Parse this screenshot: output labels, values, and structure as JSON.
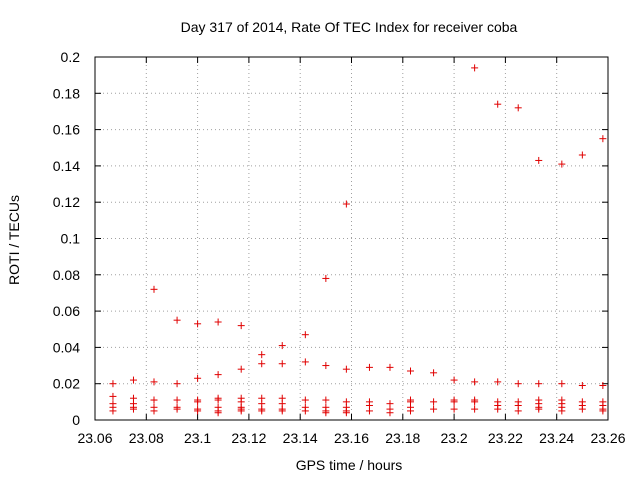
{
  "chart_data": {
    "type": "scatter",
    "title": "Day 317 of 2014, Rate Of TEC Index for receiver coba",
    "xlabel": "GPS time / hours",
    "ylabel": "ROTI / TECUs",
    "xlim": [
      23.06,
      23.26
    ],
    "ylim": [
      0,
      0.2
    ],
    "xticks": [
      23.06,
      23.08,
      23.1,
      23.12,
      23.14,
      23.16,
      23.18,
      23.2,
      23.22,
      23.24,
      23.26
    ],
    "xtick_labels": [
      "23.06",
      "23.08",
      "23.1",
      "23.12",
      "23.14",
      "23.16",
      "23.18",
      "23.2",
      "23.22",
      "23.24",
      "23.26"
    ],
    "yticks": [
      0,
      0.02,
      0.04,
      0.06,
      0.08,
      0.1,
      0.12,
      0.14,
      0.16,
      0.18,
      0.2
    ],
    "ytick_labels": [
      "0",
      "0.02",
      "0.04",
      "0.06",
      "0.08",
      "0.1",
      "0.12",
      "0.14",
      "0.16",
      "0.18",
      "0.2"
    ],
    "grid": true,
    "marker": "+",
    "color": "#e00000",
    "series": [
      {
        "name": "ROTI",
        "points": [
          [
            23.067,
            0.02
          ],
          [
            23.067,
            0.013
          ],
          [
            23.067,
            0.009
          ],
          [
            23.067,
            0.007
          ],
          [
            23.067,
            0.005
          ],
          [
            23.075,
            0.022
          ],
          [
            23.075,
            0.012
          ],
          [
            23.075,
            0.009
          ],
          [
            23.075,
            0.007
          ],
          [
            23.075,
            0.006
          ],
          [
            23.083,
            0.072
          ],
          [
            23.083,
            0.021
          ],
          [
            23.083,
            0.011
          ],
          [
            23.083,
            0.011
          ],
          [
            23.083,
            0.007
          ],
          [
            23.083,
            0.005
          ],
          [
            23.092,
            0.055
          ],
          [
            23.092,
            0.02
          ],
          [
            23.092,
            0.011
          ],
          [
            23.092,
            0.007
          ],
          [
            23.092,
            0.006
          ],
          [
            23.1,
            0.053
          ],
          [
            23.1,
            0.023
          ],
          [
            23.1,
            0.011
          ],
          [
            23.1,
            0.01
          ],
          [
            23.1,
            0.006
          ],
          [
            23.1,
            0.005
          ],
          [
            23.108,
            0.054
          ],
          [
            23.108,
            0.025
          ],
          [
            23.108,
            0.012
          ],
          [
            23.108,
            0.011
          ],
          [
            23.108,
            0.007
          ],
          [
            23.108,
            0.005
          ],
          [
            23.108,
            0.004
          ],
          [
            23.117,
            0.052
          ],
          [
            23.117,
            0.028
          ],
          [
            23.117,
            0.012
          ],
          [
            23.117,
            0.01
          ],
          [
            23.117,
            0.007
          ],
          [
            23.117,
            0.006
          ],
          [
            23.117,
            0.005
          ],
          [
            23.125,
            0.036
          ],
          [
            23.125,
            0.031
          ],
          [
            23.125,
            0.012
          ],
          [
            23.125,
            0.009
          ],
          [
            23.125,
            0.006
          ],
          [
            23.125,
            0.005
          ],
          [
            23.133,
            0.041
          ],
          [
            23.133,
            0.031
          ],
          [
            23.133,
            0.012
          ],
          [
            23.133,
            0.009
          ],
          [
            23.133,
            0.006
          ],
          [
            23.133,
            0.005
          ],
          [
            23.142,
            0.047
          ],
          [
            23.142,
            0.032
          ],
          [
            23.142,
            0.011
          ],
          [
            23.142,
            0.007
          ],
          [
            23.142,
            0.005
          ],
          [
            23.15,
            0.078
          ],
          [
            23.15,
            0.03
          ],
          [
            23.15,
            0.011
          ],
          [
            23.15,
            0.007
          ],
          [
            23.15,
            0.005
          ],
          [
            23.15,
            0.004
          ],
          [
            23.158,
            0.119
          ],
          [
            23.158,
            0.028
          ],
          [
            23.158,
            0.01
          ],
          [
            23.158,
            0.007
          ],
          [
            23.158,
            0.005
          ],
          [
            23.158,
            0.004
          ],
          [
            23.167,
            0.029
          ],
          [
            23.167,
            0.01
          ],
          [
            23.167,
            0.008
          ],
          [
            23.167,
            0.005
          ],
          [
            23.175,
            0.029
          ],
          [
            23.175,
            0.009
          ],
          [
            23.175,
            0.006
          ],
          [
            23.175,
            0.004
          ],
          [
            23.183,
            0.027
          ],
          [
            23.183,
            0.011
          ],
          [
            23.183,
            0.01
          ],
          [
            23.183,
            0.007
          ],
          [
            23.183,
            0.005
          ],
          [
            23.192,
            0.026
          ],
          [
            23.192,
            0.01
          ],
          [
            23.192,
            0.006
          ],
          [
            23.2,
            0.022
          ],
          [
            23.2,
            0.011
          ],
          [
            23.2,
            0.01
          ],
          [
            23.2,
            0.006
          ],
          [
            23.208,
            0.194
          ],
          [
            23.208,
            0.021
          ],
          [
            23.208,
            0.011
          ],
          [
            23.208,
            0.01
          ],
          [
            23.208,
            0.006
          ],
          [
            23.217,
            0.174
          ],
          [
            23.217,
            0.021
          ],
          [
            23.217,
            0.01
          ],
          [
            23.217,
            0.008
          ],
          [
            23.217,
            0.006
          ],
          [
            23.225,
            0.172
          ],
          [
            23.225,
            0.02
          ],
          [
            23.225,
            0.01
          ],
          [
            23.225,
            0.008
          ],
          [
            23.225,
            0.005
          ],
          [
            23.233,
            0.143
          ],
          [
            23.233,
            0.02
          ],
          [
            23.233,
            0.011
          ],
          [
            23.233,
            0.009
          ],
          [
            23.233,
            0.007
          ],
          [
            23.233,
            0.006
          ],
          [
            23.242,
            0.141
          ],
          [
            23.242,
            0.02
          ],
          [
            23.242,
            0.011
          ],
          [
            23.242,
            0.009
          ],
          [
            23.242,
            0.007
          ],
          [
            23.242,
            0.005
          ],
          [
            23.25,
            0.146
          ],
          [
            23.25,
            0.019
          ],
          [
            23.25,
            0.01
          ],
          [
            23.25,
            0.008
          ],
          [
            23.25,
            0.006
          ],
          [
            23.258,
            0.155
          ],
          [
            23.258,
            0.019
          ],
          [
            23.258,
            0.01
          ],
          [
            23.258,
            0.008
          ],
          [
            23.258,
            0.006
          ],
          [
            23.258,
            0.005
          ]
        ]
      }
    ]
  }
}
